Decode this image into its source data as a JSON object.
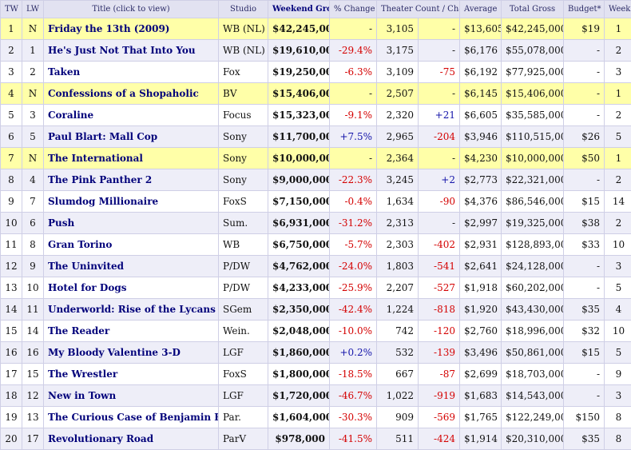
{
  "headers": {
    "tw": "TW",
    "lw": "LW",
    "title": "Title (click to view)",
    "studio": "Studio",
    "weekend_gross": "Weekend Gross",
    "pct_change": "% Change",
    "theater_count": "Theater Count / Change",
    "average": "Average",
    "total_gross": "Total Gross",
    "budget": "Budget*",
    "week": "Week #"
  },
  "colors": {
    "new_release_highlight": "#ffffa8",
    "negative_change": "#d40000",
    "positive_change": "#1515aa",
    "title_link": "#00007a"
  },
  "rows": [
    {
      "tw": "1",
      "lw": "N",
      "title": "Friday the 13th (2009)",
      "studio": "WB (NL)",
      "gross": "$42,245,000",
      "pct": "-",
      "theaters": "3,105",
      "tchange": "-",
      "average": "$13,605",
      "total": "$42,245,000",
      "budget": "$19",
      "week": "1",
      "is_new": true
    },
    {
      "tw": "2",
      "lw": "1",
      "title": "He's Just Not That Into You",
      "studio": "WB (NL)",
      "gross": "$19,610,000",
      "pct": "-29.4%",
      "theaters": "3,175",
      "tchange": "-",
      "average": "$6,176",
      "total": "$55,078,000",
      "budget": "-",
      "week": "2"
    },
    {
      "tw": "3",
      "lw": "2",
      "title": "Taken",
      "studio": "Fox",
      "gross": "$19,250,000",
      "pct": "-6.3%",
      "theaters": "3,109",
      "tchange": "-75",
      "average": "$6,192",
      "total": "$77,925,000",
      "budget": "-",
      "week": "3"
    },
    {
      "tw": "4",
      "lw": "N",
      "title": "Confessions of a Shopaholic",
      "studio": "BV",
      "gross": "$15,406,000",
      "pct": "-",
      "theaters": "2,507",
      "tchange": "-",
      "average": "$6,145",
      "total": "$15,406,000",
      "budget": "-",
      "week": "1",
      "is_new": true
    },
    {
      "tw": "5",
      "lw": "3",
      "title": "Coraline",
      "studio": "Focus",
      "gross": "$15,323,000",
      "pct": "-9.1%",
      "theaters": "2,320",
      "tchange": "+21",
      "average": "$6,605",
      "total": "$35,585,000",
      "budget": "-",
      "week": "2"
    },
    {
      "tw": "6",
      "lw": "5",
      "title": "Paul Blart: Mall Cop",
      "studio": "Sony",
      "gross": "$11,700,000",
      "pct": "+7.5%",
      "theaters": "2,965",
      "tchange": "-204",
      "average": "$3,946",
      "total": "$110,515,000",
      "budget": "$26",
      "week": "5"
    },
    {
      "tw": "7",
      "lw": "N",
      "title": "The International",
      "studio": "Sony",
      "gross": "$10,000,000",
      "pct": "-",
      "theaters": "2,364",
      "tchange": "-",
      "average": "$4,230",
      "total": "$10,000,000",
      "budget": "$50",
      "week": "1",
      "is_new": true
    },
    {
      "tw": "8",
      "lw": "4",
      "title": "The Pink Panther 2",
      "studio": "Sony",
      "gross": "$9,000,000",
      "pct": "-22.3%",
      "theaters": "3,245",
      "tchange": "+2",
      "average": "$2,773",
      "total": "$22,321,000",
      "budget": "-",
      "week": "2"
    },
    {
      "tw": "9",
      "lw": "7",
      "title": "Slumdog Millionaire",
      "studio": "FoxS",
      "gross": "$7,150,000",
      "pct": "-0.4%",
      "theaters": "1,634",
      "tchange": "-90",
      "average": "$4,376",
      "total": "$86,546,000",
      "budget": "$15",
      "week": "14"
    },
    {
      "tw": "10",
      "lw": "6",
      "title": "Push",
      "studio": "Sum.",
      "gross": "$6,931,000",
      "pct": "-31.2%",
      "theaters": "2,313",
      "tchange": "-",
      "average": "$2,997",
      "total": "$19,325,000",
      "budget": "$38",
      "week": "2"
    },
    {
      "tw": "11",
      "lw": "8",
      "title": "Gran Torino",
      "studio": "WB",
      "gross": "$6,750,000",
      "pct": "-5.7%",
      "theaters": "2,303",
      "tchange": "-402",
      "average": "$2,931",
      "total": "$128,893,000",
      "budget": "$33",
      "week": "10"
    },
    {
      "tw": "12",
      "lw": "9",
      "title": "The Uninvited",
      "studio": "P/DW",
      "gross": "$4,762,000",
      "pct": "-24.0%",
      "theaters": "1,803",
      "tchange": "-541",
      "average": "$2,641",
      "total": "$24,128,000",
      "budget": "-",
      "week": "3"
    },
    {
      "tw": "13",
      "lw": "10",
      "title": "Hotel for Dogs",
      "studio": "P/DW",
      "gross": "$4,233,000",
      "pct": "-25.9%",
      "theaters": "2,207",
      "tchange": "-527",
      "average": "$1,918",
      "total": "$60,202,000",
      "budget": "-",
      "week": "5"
    },
    {
      "tw": "14",
      "lw": "11",
      "title": "Underworld: Rise of the Lycans",
      "studio": "SGem",
      "gross": "$2,350,000",
      "pct": "-42.4%",
      "theaters": "1,224",
      "tchange": "-818",
      "average": "$1,920",
      "total": "$43,430,000",
      "budget": "$35",
      "week": "4"
    },
    {
      "tw": "15",
      "lw": "14",
      "title": "The Reader",
      "studio": "Wein.",
      "gross": "$2,048,000",
      "pct": "-10.0%",
      "theaters": "742",
      "tchange": "-120",
      "average": "$2,760",
      "total": "$18,996,000",
      "budget": "$32",
      "week": "10"
    },
    {
      "tw": "16",
      "lw": "16",
      "title": "My Bloody Valentine 3-D",
      "studio": "LGF",
      "gross": "$1,860,000",
      "pct": "+0.2%",
      "theaters": "532",
      "tchange": "-139",
      "average": "$3,496",
      "total": "$50,861,000",
      "budget": "$15",
      "week": "5"
    },
    {
      "tw": "17",
      "lw": "15",
      "title": "The Wrestler",
      "studio": "FoxS",
      "gross": "$1,800,000",
      "pct": "-18.5%",
      "theaters": "667",
      "tchange": "-87",
      "average": "$2,699",
      "total": "$18,703,000",
      "budget": "-",
      "week": "9"
    },
    {
      "tw": "18",
      "lw": "12",
      "title": "New in Town",
      "studio": "LGF",
      "gross": "$1,720,000",
      "pct": "-46.7%",
      "theaters": "1,022",
      "tchange": "-919",
      "average": "$1,683",
      "total": "$14,543,000",
      "budget": "-",
      "week": "3"
    },
    {
      "tw": "19",
      "lw": "13",
      "title": "The Curious Case of Benjamin Button",
      "studio": "Par.",
      "gross": "$1,604,000",
      "pct": "-30.3%",
      "theaters": "909",
      "tchange": "-569",
      "average": "$1,765",
      "total": "$122,249,000",
      "budget": "$150",
      "week": "8"
    },
    {
      "tw": "20",
      "lw": "17",
      "title": "Revolutionary Road",
      "studio": "ParV",
      "gross": "$978,000",
      "pct": "-41.5%",
      "theaters": "511",
      "tchange": "-424",
      "average": "$1,914",
      "total": "$20,310,000",
      "budget": "$35",
      "week": "8"
    }
  ]
}
